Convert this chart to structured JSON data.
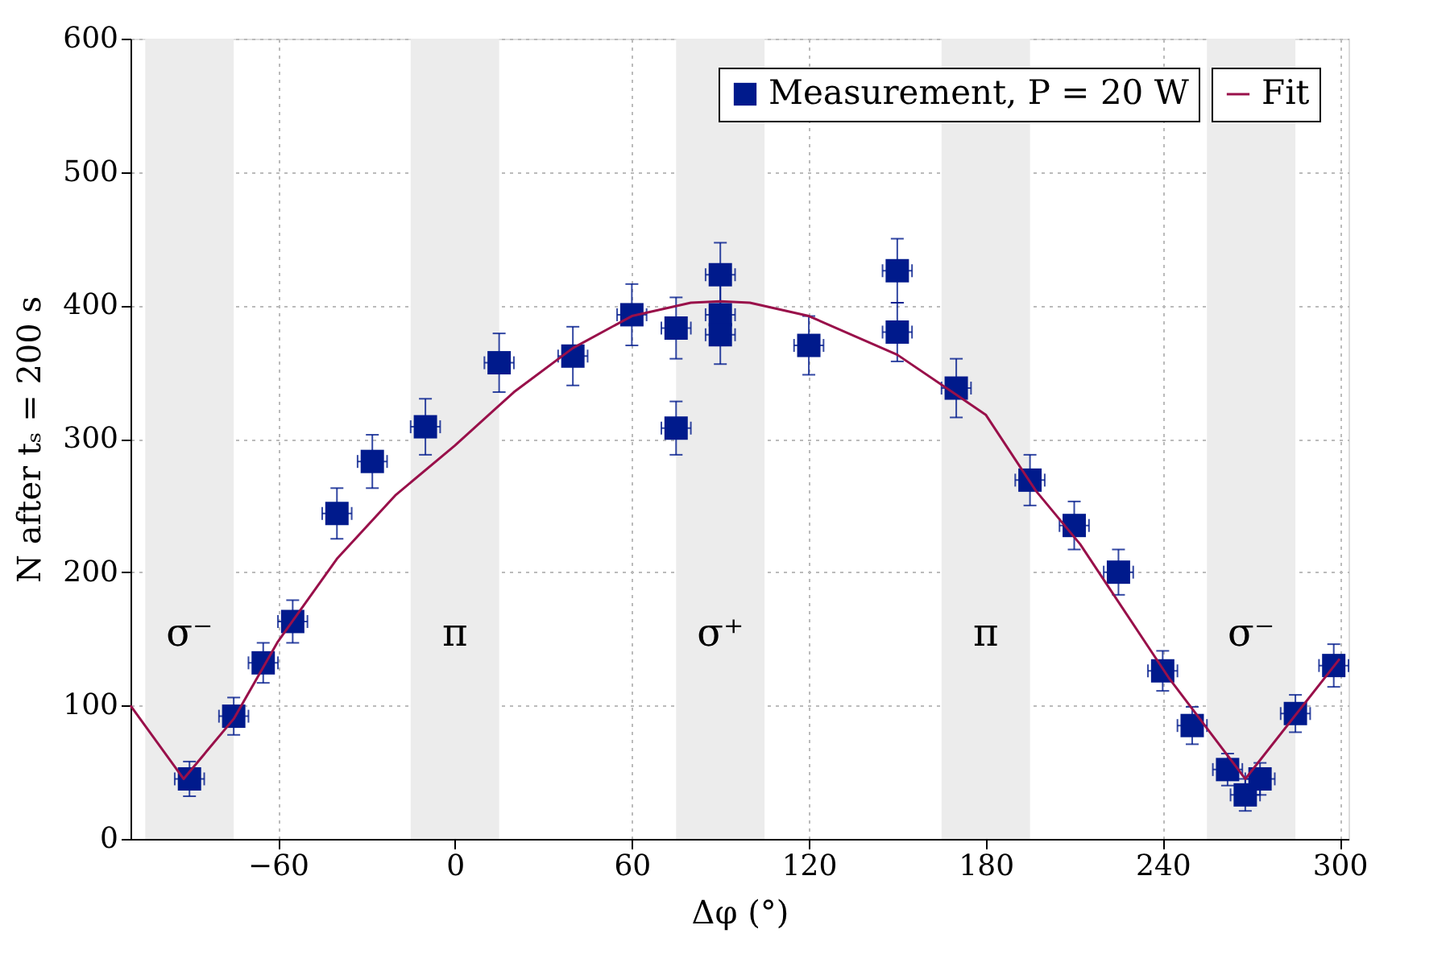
{
  "chart_data": {
    "type": "scatter",
    "xlabel": "Δφ (°)",
    "ylabel": "N after tₛ = 200 s",
    "xlim": [
      -110,
      303
    ],
    "ylim": [
      0,
      600
    ],
    "xticks": [
      -60,
      0,
      60,
      120,
      180,
      240,
      300
    ],
    "yticks": [
      0,
      100,
      200,
      300,
      400,
      500,
      600
    ],
    "grid": true,
    "legend": "top right",
    "bands": [
      {
        "axis": "x",
        "from": -105,
        "to": -75,
        "label": "σ⁻",
        "color": "#ececec"
      },
      {
        "axis": "x",
        "from": -15,
        "to": 15,
        "label": "π",
        "color": "#ececec"
      },
      {
        "axis": "x",
        "from": 75,
        "to": 105,
        "label": "σ⁺",
        "color": "#ececec"
      },
      {
        "axis": "x",
        "from": 165,
        "to": 195,
        "label": "π",
        "color": "#ececec"
      },
      {
        "axis": "x",
        "from": 255,
        "to": 285,
        "label": "σ⁻",
        "color": "#ececec"
      }
    ],
    "series": [
      {
        "name": "Measurement, P = 20 W",
        "marker": "square",
        "color": "#001a8c",
        "x": [
          -90,
          -75,
          -65,
          -55,
          -40,
          -28,
          -10,
          15,
          40,
          60,
          75,
          75,
          90,
          90,
          90,
          120,
          150,
          150,
          170,
          195,
          210,
          225,
          240,
          250,
          262,
          268,
          273,
          285,
          298
        ],
        "values": [
          45,
          92,
          132,
          163,
          244,
          283,
          309,
          357,
          362,
          393,
          383,
          308,
          423,
          393,
          378,
          370,
          426,
          380,
          338,
          269,
          235,
          200,
          126,
          85,
          52,
          33,
          45,
          94,
          130
        ],
        "errors": [
          13,
          14,
          15,
          16,
          19,
          20,
          21,
          22,
          22,
          23,
          23,
          20,
          24,
          23,
          22,
          22,
          24,
          22,
          22,
          19,
          18,
          17,
          15,
          14,
          12,
          12,
          12,
          14,
          16
        ],
        "xerrors": [
          5,
          5,
          5,
          5,
          5,
          5,
          5,
          5,
          5,
          5,
          5,
          5,
          5,
          5,
          5,
          5,
          5,
          5,
          5,
          5,
          5,
          5,
          5,
          5,
          5,
          5,
          5,
          5,
          5
        ]
      },
      {
        "name": "Fit",
        "type": "line",
        "color": "#99104a",
        "x": [
          -110,
          -92,
          -75,
          -60,
          -40,
          -20,
          0,
          20,
          40,
          60,
          80,
          90,
          100,
          120,
          150,
          170,
          180,
          197,
          212,
          242,
          268,
          300
        ],
        "values": [
          100,
          45,
          90,
          148,
          210,
          258,
          295,
          335,
          368,
          392,
          402,
          403,
          402,
          392,
          363,
          333,
          318,
          261,
          221,
          121,
          45,
          135
        ]
      }
    ]
  }
}
